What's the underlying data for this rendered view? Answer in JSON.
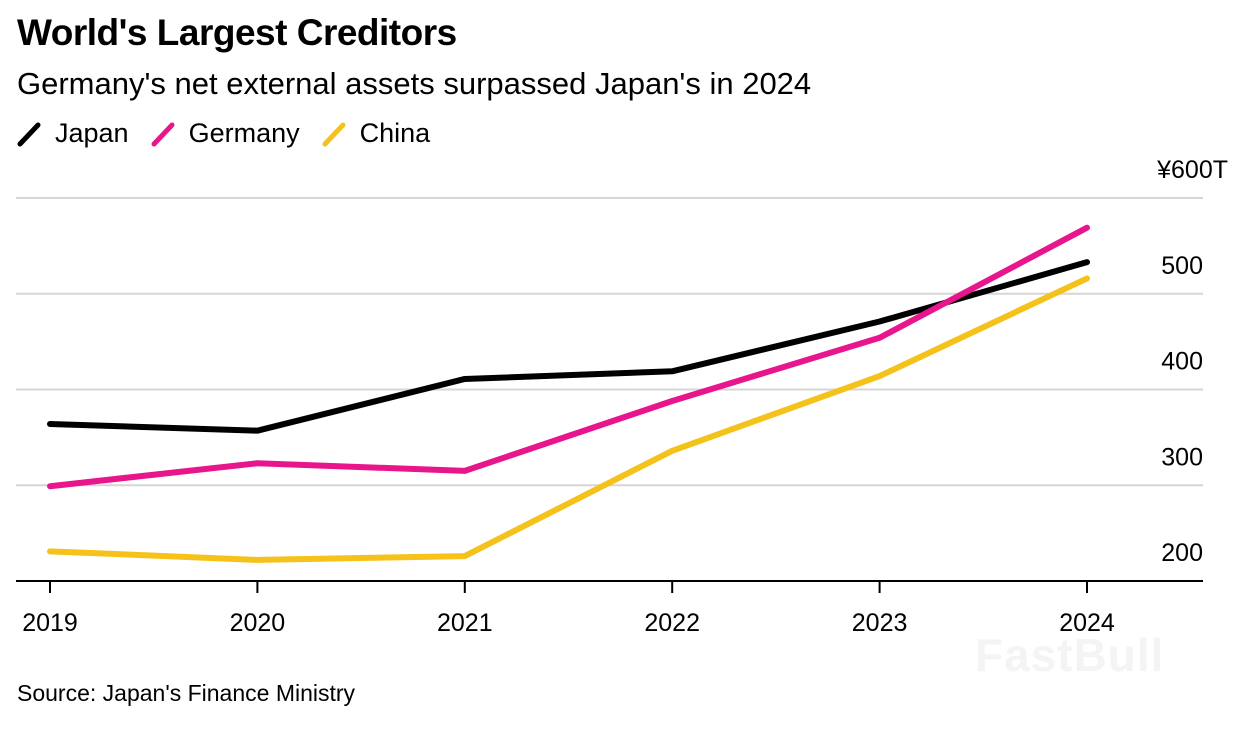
{
  "title": "World's Largest Creditors",
  "subtitle": "Germany's net external assets surpassed Japan's in 2024",
  "source": "Source: Japan's Finance Ministry",
  "watermark": "FastBull",
  "legend": [
    {
      "name": "Japan",
      "color": "#000000"
    },
    {
      "name": "Germany",
      "color": "#e8168c"
    },
    {
      "name": "China",
      "color": "#f5c21b"
    }
  ],
  "chart_data": {
    "type": "line",
    "title": "World's Largest Creditors",
    "subtitle": "Germany's net external assets surpassed Japan's in 2024",
    "xlabel": "",
    "ylabel": "",
    "categories": [
      "2019",
      "2020",
      "2021",
      "2022",
      "2023",
      "2024"
    ],
    "y_tick_labels": [
      "200",
      "300",
      "400",
      "500",
      "¥600T"
    ],
    "y_ticks": [
      200,
      300,
      400,
      500,
      600
    ],
    "ylim": [
      200,
      600
    ],
    "y_unit": "¥ trillion",
    "grid": true,
    "y_axis_position": "right",
    "legend_position": "top-left",
    "series": [
      {
        "name": "Japan",
        "color": "#000000",
        "values": [
          364,
          357,
          411,
          419,
          471,
          533
        ]
      },
      {
        "name": "Germany",
        "color": "#e8168c",
        "values": [
          299,
          323,
          315,
          388,
          454,
          569
        ]
      },
      {
        "name": "China",
        "color": "#f5c21b",
        "values": [
          231,
          222,
          226,
          336,
          414,
          516
        ]
      }
    ]
  }
}
